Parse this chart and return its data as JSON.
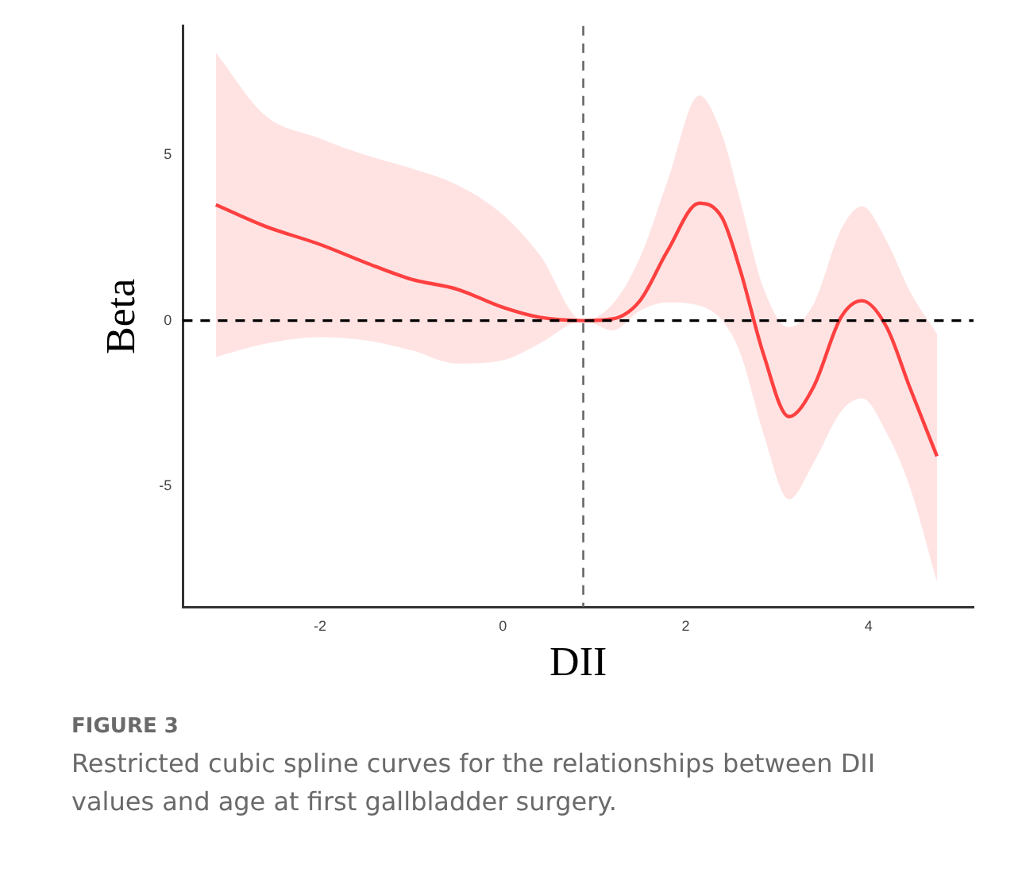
{
  "chart_data": {
    "type": "line",
    "xlabel": "DII",
    "ylabel": "Beta",
    "series": [
      {
        "color": "#ff4040",
        "x": [
          -3.14,
          -2.6,
          -2.0,
          -1.5,
          -1.0,
          -0.5,
          0,
          0.4,
          0.88,
          1.2,
          1.5,
          1.8,
          2.15,
          2.4,
          2.6,
          2.85,
          3.13,
          3.4,
          3.7,
          3.93,
          4.2,
          4.45,
          4.75
        ],
        "values": [
          3.5,
          2.85,
          2.3,
          1.75,
          1.25,
          0.95,
          0.4,
          0.1,
          0,
          0.05,
          0.6,
          2.1,
          3.55,
          3.1,
          1.5,
          -1.0,
          -2.9,
          -2.0,
          0.1,
          0.6,
          -0.2,
          -2.0,
          -4.1
        ],
        "lower": [
          -1.1,
          -0.7,
          -0.5,
          -0.6,
          -0.9,
          -1.3,
          -1.2,
          -0.7,
          0,
          -0.3,
          0.3,
          0.55,
          0.45,
          0.0,
          -1.0,
          -3.4,
          -5.4,
          -4.3,
          -2.75,
          -2.35,
          -3.4,
          -5.0,
          -7.9
        ],
        "upper": [
          8.1,
          6.2,
          5.5,
          5.0,
          4.6,
          4.1,
          3.2,
          2.0,
          0,
          0.5,
          1.9,
          4.2,
          6.8,
          5.6,
          3.6,
          1.0,
          -0.2,
          0.5,
          2.75,
          3.45,
          2.4,
          0.9,
          -0.4
        ]
      }
    ],
    "xlim": [
      -3.5,
      5.15
    ],
    "xticks": [
      -2,
      0,
      2,
      4
    ],
    "ylim": [
      -8.65,
      8.9
    ],
    "yticks": [
      -5,
      0,
      5
    ],
    "grid": false,
    "legend": false,
    "marker": "none",
    "line_style": "solid",
    "ref_lines": [
      {
        "axis": "y",
        "value": 0,
        "color": "#000000",
        "line_style": "dashed"
      },
      {
        "axis": "x",
        "value": 0.88,
        "color": "#666666",
        "line_style": "dashed"
      }
    ],
    "annotations": [
      "FIGURE 3",
      "Restricted cubic spline curves for the relationships between DII values and age at first gallbladder surgery."
    ]
  }
}
